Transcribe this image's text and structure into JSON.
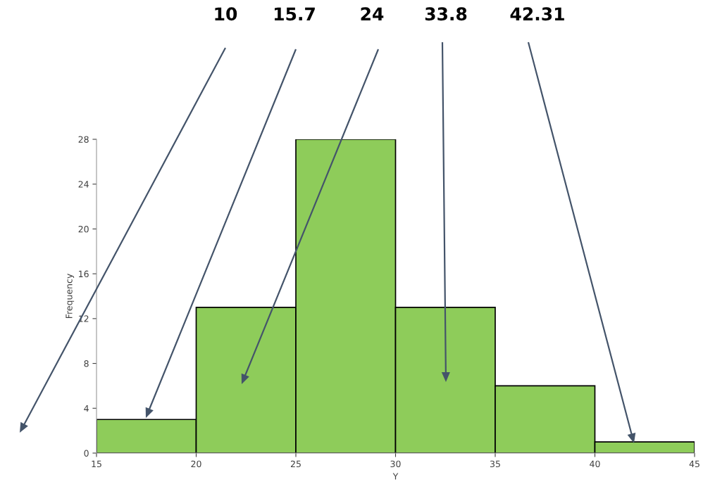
{
  "chart_data": {
    "type": "histogram",
    "xlabel": "Y",
    "ylabel": "Frequency",
    "bins": [
      15,
      20,
      25,
      30,
      35,
      40,
      45
    ],
    "values": [
      3,
      13,
      28,
      13,
      6,
      1
    ],
    "color": "#8ecc5a",
    "xlim": [
      15,
      45
    ],
    "xticks": [
      15,
      20,
      25,
      30,
      35,
      40,
      45
    ],
    "ylim": [
      0,
      28
    ],
    "yticks": [
      0,
      4,
      8,
      12,
      16,
      20,
      24,
      28
    ],
    "grid": false,
    "annotations": [
      "10",
      "15.7",
      "24",
      "33.8",
      "42.31"
    ]
  }
}
